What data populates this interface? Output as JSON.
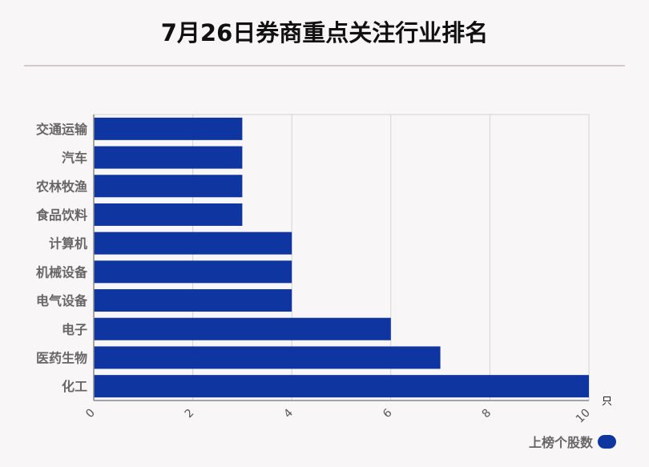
{
  "title": "7月26日券商重点关注行业排名",
  "colors": {
    "bar": "#0f35a0",
    "grid": "#d3d3d3",
    "background": "#f9f6f7"
  },
  "legend": {
    "label": "上榜个股数"
  },
  "chart_data": {
    "type": "bar",
    "orientation": "horizontal",
    "title": "7月26日券商重点关注行业排名",
    "categories": [
      "交通运输",
      "汽车",
      "农林牧渔",
      "食品饮料",
      "计算机",
      "机械设备",
      "电气设备",
      "电子",
      "医药生物",
      "化工"
    ],
    "series": [
      {
        "name": "上榜个股数",
        "values": [
          3,
          3,
          3,
          3,
          4,
          4,
          4,
          6,
          7,
          10
        ]
      }
    ],
    "x_ticks": [
      "0",
      "2",
      "4",
      "6",
      "8",
      "10"
    ],
    "xlim": [
      0,
      10
    ],
    "unit": "只",
    "grid": true,
    "legend_position": "bottom-right"
  }
}
